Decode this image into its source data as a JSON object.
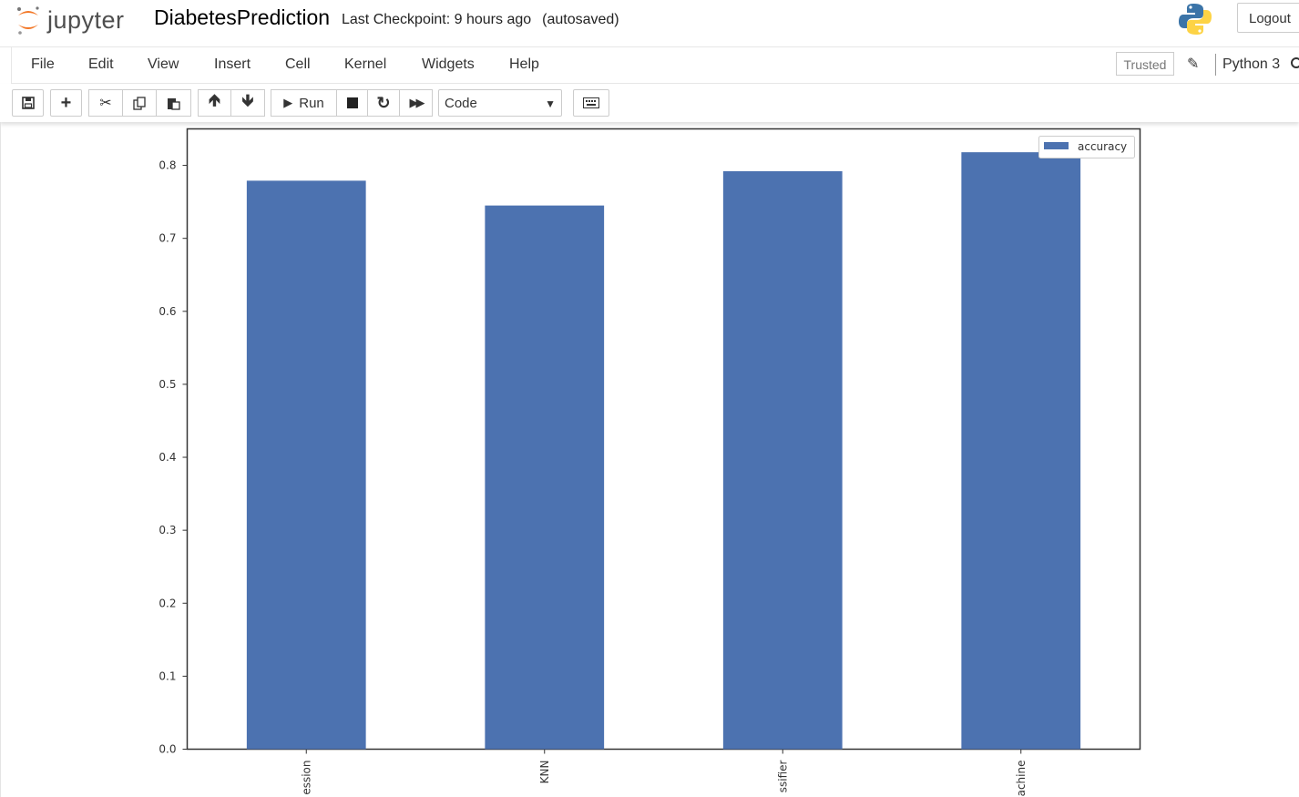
{
  "header": {
    "logo_text": "jupyter",
    "notebook_name": "DiabetesPrediction",
    "checkpoint": "Last Checkpoint: 9 hours ago",
    "autosaved": "(autosaved)",
    "logout_label": "Logout"
  },
  "menu": {
    "items": [
      "File",
      "Edit",
      "View",
      "Insert",
      "Cell",
      "Kernel",
      "Widgets",
      "Help"
    ],
    "trusted_label": "Trusted",
    "kernel_name": "Python 3"
  },
  "toolbar": {
    "run_label": "Run",
    "cell_type": "Code"
  },
  "colors": {
    "bar": "#4c72b0",
    "axis": "#333333"
  },
  "chart_data": {
    "type": "bar",
    "categories": [
      "ession",
      "KNN",
      "ssifier",
      "achine"
    ],
    "series": [
      {
        "name": "accuracy",
        "values": [
          0.779,
          0.745,
          0.792,
          0.818
        ]
      }
    ],
    "ylim": [
      0,
      0.85
    ],
    "yticks": [
      "0.0",
      "0.1",
      "0.2",
      "0.3",
      "0.4",
      "0.5",
      "0.6",
      "0.7",
      "0.8"
    ],
    "legend": "top-right",
    "grid": false
  }
}
